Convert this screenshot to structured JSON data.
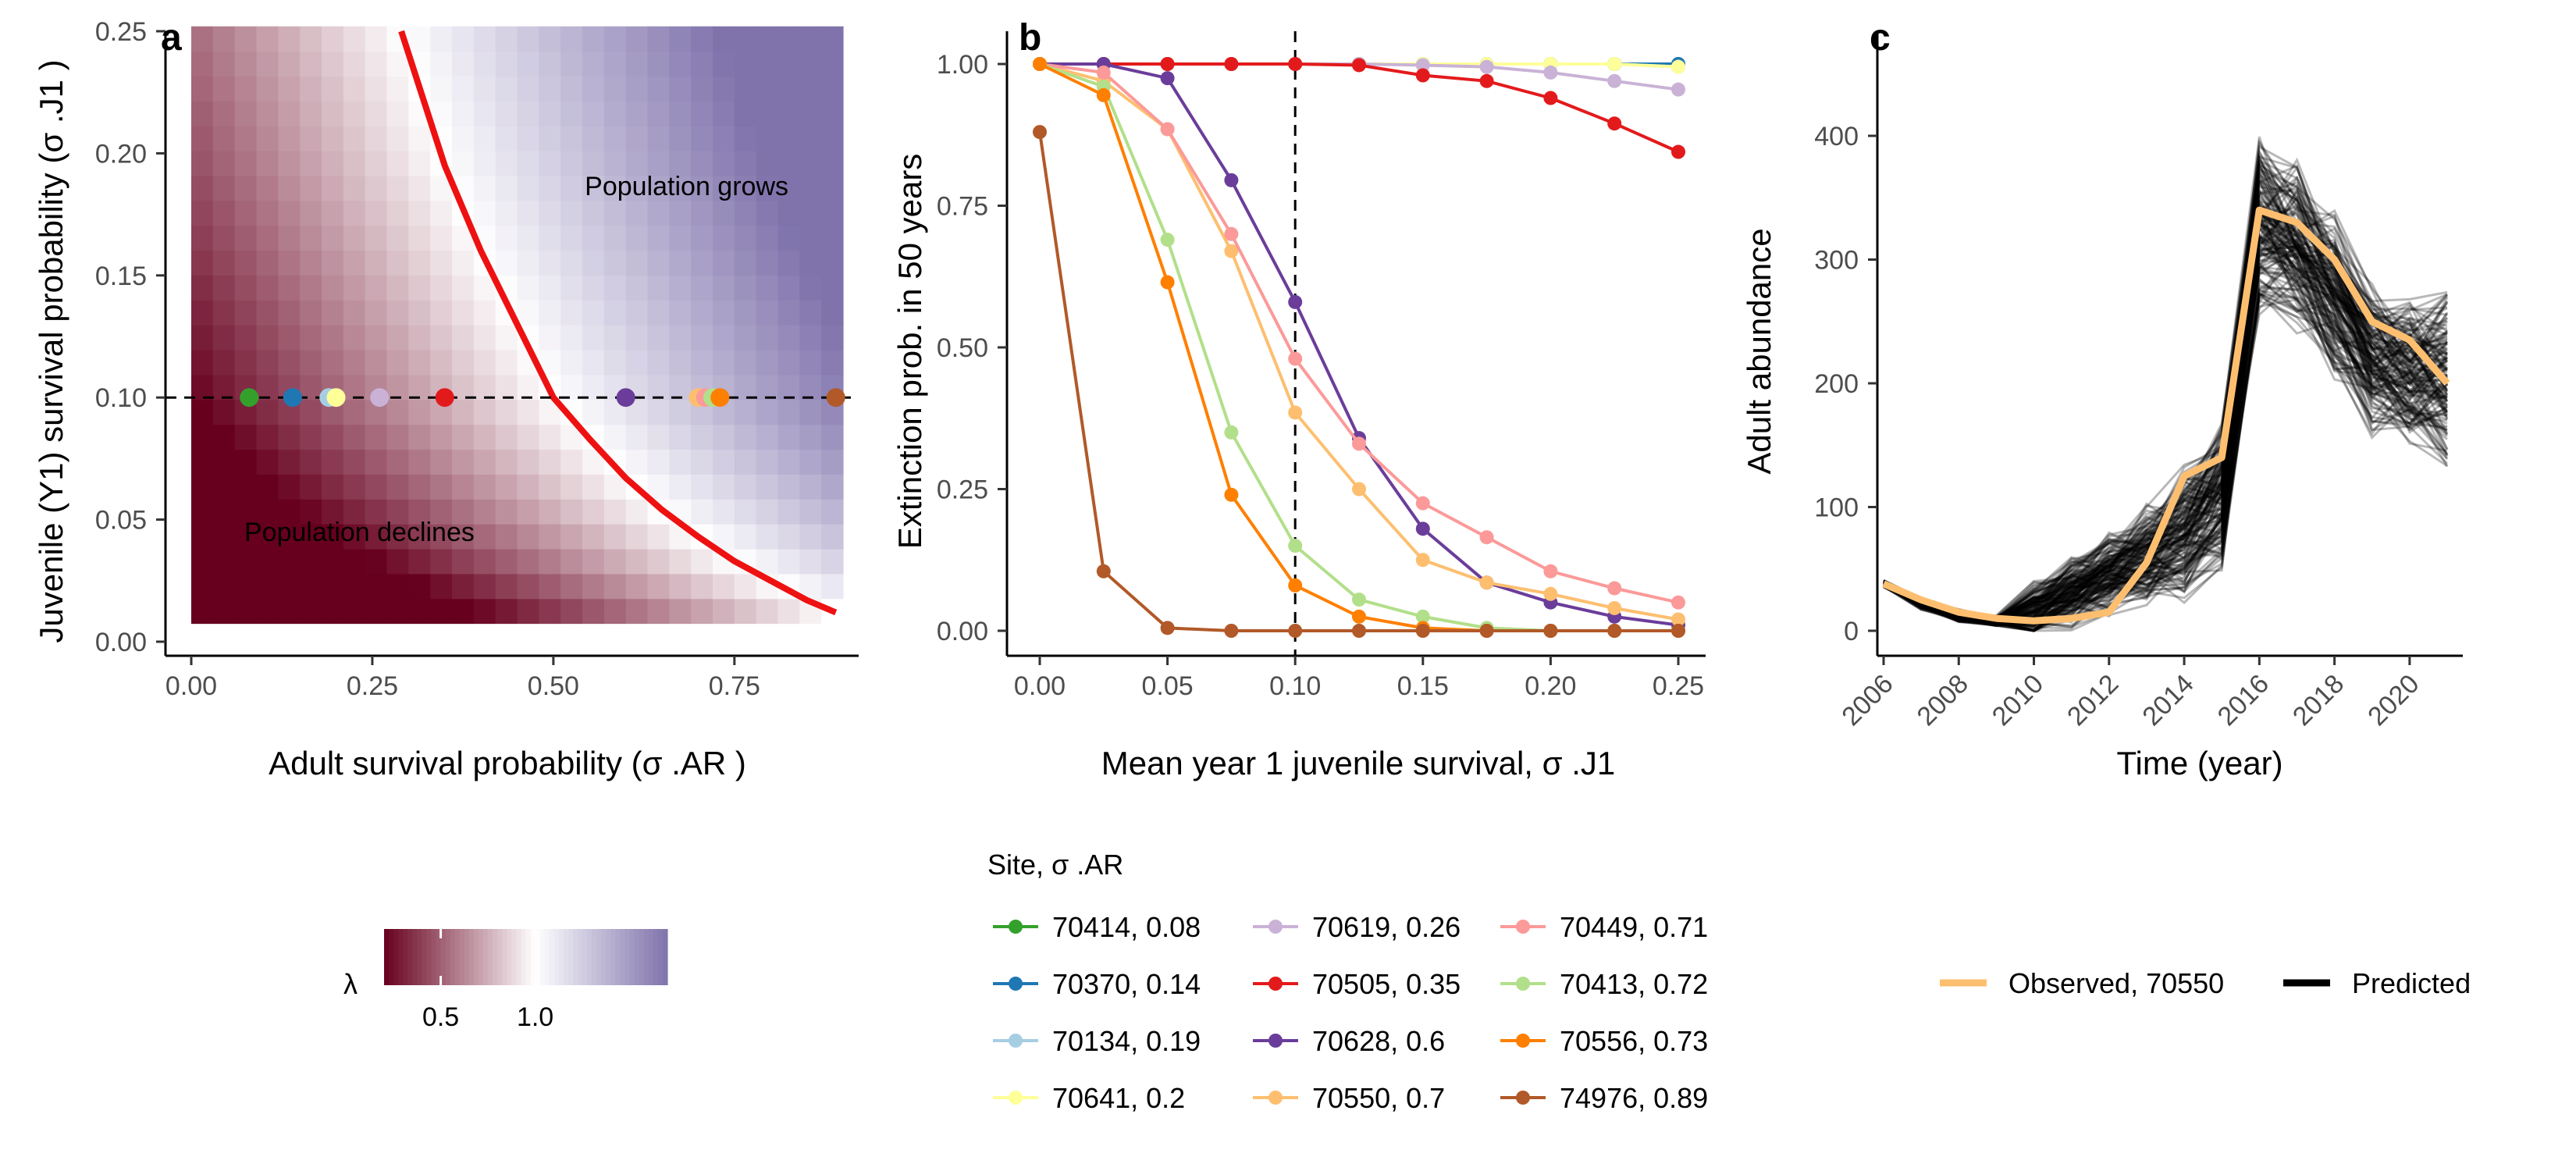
{
  "chart_data": [
    {
      "panel": "a",
      "type": "heatmap",
      "xlabel": "Adult survival probability (σ .AR )",
      "ylabel": "Juvenile (Y1) survival probability (σ .J1 )",
      "xlim": [
        0,
        0.9
      ],
      "ylim": [
        0,
        0.25
      ],
      "x_ticks": [
        "0.00",
        "0.25",
        "0.50",
        "0.75"
      ],
      "y_ticks": [
        "0.00",
        "0.05",
        "0.10",
        "0.15",
        "0.20",
        "0.25"
      ],
      "fill_variable": "λ",
      "fill_scale": {
        "low_color": "#67001f",
        "mid_color": "#ffffff",
        "high_color": "#8073ac",
        "low": 0.2,
        "mid": 1.0,
        "high": 1.7
      },
      "annotations": [
        "Population grows",
        "Population declines"
      ],
      "threshold_line": {
        "label": "λ = 1",
        "color": "#ee1111",
        "x_values": [
          0.29,
          0.35,
          0.4,
          0.45,
          0.5,
          0.55,
          0.6,
          0.65,
          0.7,
          0.75,
          0.8,
          0.85,
          0.89
        ],
        "y_values": [
          0.25,
          0.195,
          0.16,
          0.13,
          0.1,
          0.083,
          0.067,
          0.054,
          0.043,
          0.033,
          0.025,
          0.017,
          0.012
        ]
      },
      "reference_line_y": 0.1,
      "points": [
        {
          "x": 0.08,
          "y": 0.1,
          "color": "#33a02c"
        },
        {
          "x": 0.14,
          "y": 0.1,
          "color": "#1f78b4"
        },
        {
          "x": 0.19,
          "y": 0.1,
          "color": "#a6cee3"
        },
        {
          "x": 0.2,
          "y": 0.1,
          "color": "#ffff99"
        },
        {
          "x": 0.26,
          "y": 0.1,
          "color": "#cab2d6"
        },
        {
          "x": 0.35,
          "y": 0.1,
          "color": "#e31a1c"
        },
        {
          "x": 0.6,
          "y": 0.1,
          "color": "#6a3d9a"
        },
        {
          "x": 0.7,
          "y": 0.1,
          "color": "#fdbf6f"
        },
        {
          "x": 0.71,
          "y": 0.1,
          "color": "#fb9a99"
        },
        {
          "x": 0.72,
          "y": 0.1,
          "color": "#b2df8a"
        },
        {
          "x": 0.73,
          "y": 0.1,
          "color": "#ff7f00"
        },
        {
          "x": 0.89,
          "y": 0.1,
          "color": "#b15928"
        }
      ],
      "legend": {
        "title": "λ",
        "ticks": [
          "0.5",
          "1.0"
        ],
        "tick_values": [
          0.5,
          1.0
        ]
      }
    },
    {
      "panel": "b",
      "type": "line",
      "xlabel": "Mean year 1 juvenile survival, σ .J1",
      "ylabel": "Extinction prob. in 50 years",
      "xlim": [
        0,
        0.25
      ],
      "ylim": [
        0,
        1
      ],
      "x_ticks": [
        "0.00",
        "0.05",
        "0.10",
        "0.15",
        "0.20",
        "0.25"
      ],
      "y_ticks": [
        "0.00",
        "0.25",
        "0.50",
        "0.75",
        "1.00"
      ],
      "reference_line_x": 0.1,
      "x": [
        0,
        0.025,
        0.05,
        0.075,
        0.1,
        0.125,
        0.15,
        0.175,
        0.2,
        0.225,
        0.25
      ],
      "legend_title": "Site, σ .AR",
      "series": [
        {
          "name": "70414, 0.08",
          "color": "#33a02c",
          "values": [
            1,
            1,
            1,
            1,
            1,
            1,
            1,
            1,
            1,
            1,
            1
          ]
        },
        {
          "name": "70370, 0.14",
          "color": "#1f78b4",
          "values": [
            1,
            1,
            1,
            1,
            1,
            1,
            1,
            1,
            1,
            1,
            1
          ]
        },
        {
          "name": "70134, 0.19",
          "color": "#a6cee3",
          "values": [
            1,
            1,
            1,
            1,
            1,
            1,
            1,
            1,
            1,
            1,
            0.995
          ]
        },
        {
          "name": "70641, 0.2",
          "color": "#ffff99",
          "values": [
            1,
            1,
            1,
            1,
            1,
            1,
            1,
            1,
            1,
            1,
            0.995
          ]
        },
        {
          "name": "70619, 0.26",
          "color": "#cab2d6",
          "values": [
            1,
            1,
            1,
            1,
            1,
            1,
            0.998,
            0.995,
            0.985,
            0.97,
            0.955
          ]
        },
        {
          "name": "70505, 0.35",
          "color": "#e31a1c",
          "values": [
            1,
            1,
            1,
            1,
            1,
            0.998,
            0.98,
            0.97,
            0.94,
            0.895,
            0.845
          ]
        },
        {
          "name": "70628, 0.6",
          "color": "#6a3d9a",
          "values": [
            1,
            1,
            0.975,
            0.795,
            0.58,
            0.34,
            0.18,
            0.085,
            0.05,
            0.025,
            0.01
          ]
        },
        {
          "name": "70550, 0.7",
          "color": "#fdbf6f",
          "values": [
            1,
            0.97,
            0.885,
            0.67,
            0.385,
            0.25,
            0.125,
            0.085,
            0.065,
            0.04,
            0.02
          ]
        },
        {
          "name": "70449, 0.71",
          "color": "#fb9a99",
          "values": [
            1,
            0.985,
            0.885,
            0.7,
            0.48,
            0.33,
            0.225,
            0.165,
            0.105,
            0.075,
            0.05
          ]
        },
        {
          "name": "70413, 0.72",
          "color": "#b2df8a",
          "values": [
            1,
            0.96,
            0.69,
            0.35,
            0.15,
            0.055,
            0.025,
            0.005,
            0,
            0,
            0
          ]
        },
        {
          "name": "70556, 0.73",
          "color": "#ff7f00",
          "values": [
            1,
            0.945,
            0.615,
            0.24,
            0.08,
            0.025,
            0.005,
            0,
            0,
            0,
            0
          ]
        },
        {
          "name": "74976, 0.89",
          "color": "#b15928",
          "values": [
            0.88,
            0.105,
            0.005,
            0,
            0,
            0,
            0,
            0,
            0,
            0,
            0
          ]
        }
      ]
    },
    {
      "panel": "c",
      "type": "line",
      "xlabel": "Time (year)",
      "ylabel": "Adult abundance",
      "xlim": [
        2005.6,
        2021
      ],
      "ylim": [
        -20,
        470
      ],
      "x_ticks": [
        "2006",
        "2008",
        "2010",
        "2012",
        "2014",
        "2016",
        "2018",
        "2020"
      ],
      "y_ticks": [
        "0",
        "100",
        "200",
        "300",
        "400"
      ],
      "x": [
        2006,
        2007,
        2008,
        2009,
        2010,
        2011,
        2012,
        2013,
        2014,
        2015,
        2016,
        2017,
        2018,
        2019,
        2020,
        2021
      ],
      "series": [
        {
          "name": "Observed, 70550",
          "color": "#fdbf6f",
          "values": [
            38,
            25,
            15,
            10,
            8,
            10,
            15,
            55,
            125,
            140,
            340,
            330,
            300,
            250,
            235,
            200
          ]
        },
        {
          "name": "Predicted",
          "color": "#000000",
          "note_mean": [
            38,
            22,
            12,
            8,
            15,
            30,
            45,
            60,
            80,
            110,
            330,
            310,
            270,
            220,
            210,
            200
          ]
        }
      ]
    }
  ],
  "panel_labels": [
    "a",
    "b",
    "c"
  ]
}
